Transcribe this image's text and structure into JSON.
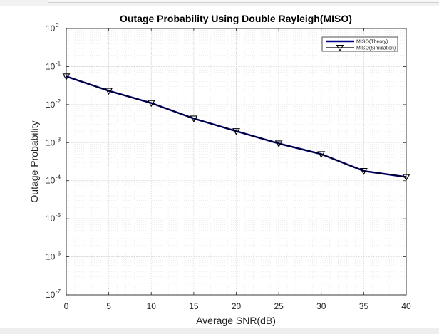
{
  "chart_data": {
    "type": "line",
    "title": "Outage Probability Using Double Rayleigh(MISO)",
    "xlabel": "Average SNR(dB)",
    "ylabel": "Outage Probability",
    "xlim": [
      0,
      40
    ],
    "ylim_log10": [
      -7,
      0
    ],
    "yscale": "log",
    "grid": true,
    "legend_placement": "top-right",
    "x_ticks": [
      "0",
      "5",
      "10",
      "15",
      "20",
      "25",
      "30",
      "35",
      "40"
    ],
    "y_ticks": [
      {
        "base": "10",
        "exp": "0"
      },
      {
        "base": "10",
        "exp": "-1"
      },
      {
        "base": "10",
        "exp": "-2"
      },
      {
        "base": "10",
        "exp": "-3"
      },
      {
        "base": "10",
        "exp": "-4"
      },
      {
        "base": "10",
        "exp": "-5"
      },
      {
        "base": "10",
        "exp": "-6"
      },
      {
        "base": "10",
        "exp": "-7"
      }
    ],
    "x": [
      0,
      5,
      10,
      15,
      20,
      25,
      30,
      35,
      40
    ],
    "series": [
      {
        "name": "MISO(Theory)",
        "color": "#00008b",
        "marker": "none",
        "values": [
          0.055,
          0.023,
          0.011,
          0.0043,
          0.002,
          0.00095,
          0.0005,
          0.00018,
          0.000125
        ]
      },
      {
        "name": "MISO(Simulation)",
        "color": "#000000",
        "marker": "triangle-down",
        "values": [
          0.055,
          0.023,
          0.011,
          0.0043,
          0.002,
          0.00095,
          0.0005,
          0.00018,
          0.000125
        ]
      }
    ]
  }
}
